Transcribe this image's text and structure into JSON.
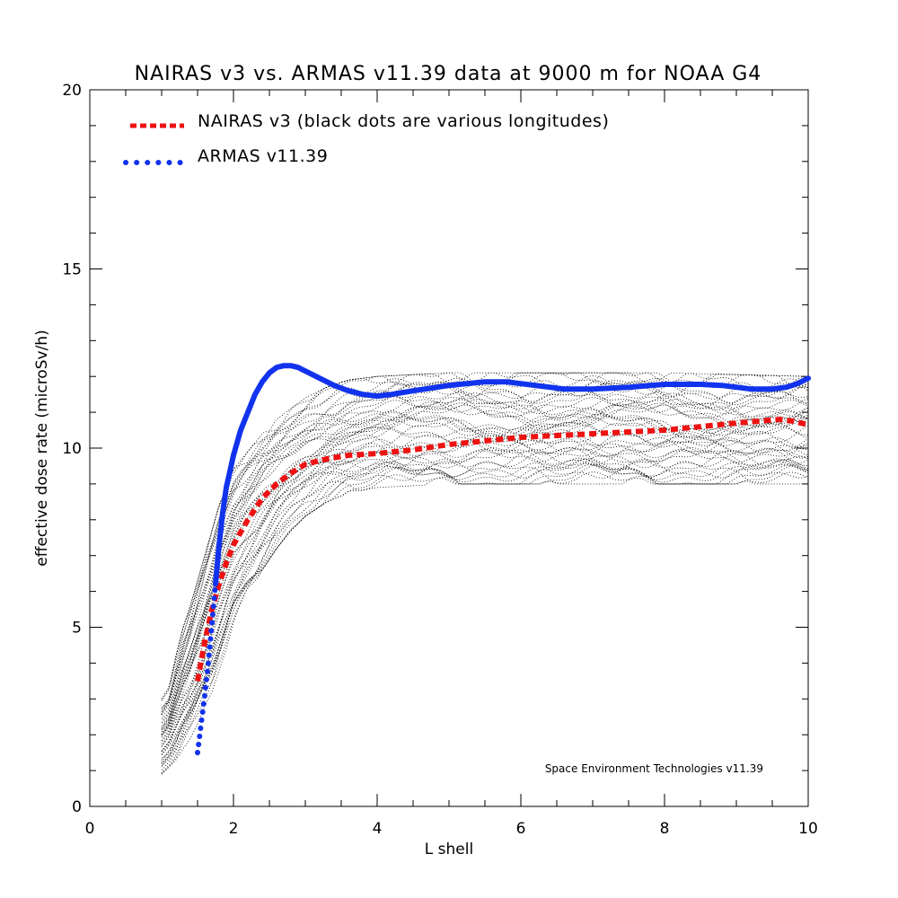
{
  "chart_data": {
    "type": "line",
    "title": "NAIRAS  v3 vs. ARMAS v11.39 data at 9000 m for NOAA G4",
    "xlabel": "L shell",
    "ylabel": "effective dose rate (microSv/h)",
    "xlim": [
      0,
      10
    ],
    "ylim": [
      0,
      20
    ],
    "x_ticks": [
      0,
      2,
      4,
      6,
      8,
      10
    ],
    "y_ticks": [
      0,
      5,
      10,
      15,
      20
    ],
    "grid": false,
    "legend_position": "top-left",
    "annotation": "Space Environment Technologies v11.39",
    "series": [
      {
        "name": "NAIRAS v3 (black dots are various longitudes)",
        "style": "dashed",
        "color": "#ee1111",
        "x": [
          1.5,
          1.6,
          1.7,
          1.8,
          1.9,
          2.0,
          2.2,
          2.4,
          2.6,
          2.8,
          3.0,
          3.3,
          3.6,
          4.0,
          4.5,
          5.0,
          5.5,
          6.0,
          6.5,
          7.0,
          7.5,
          8.0,
          8.5,
          9.0,
          9.3,
          9.6,
          9.8,
          10.0
        ],
        "y": [
          3.5,
          4.6,
          5.5,
          6.2,
          6.8,
          7.3,
          8.0,
          8.6,
          9.0,
          9.3,
          9.55,
          9.7,
          9.8,
          9.85,
          9.95,
          10.1,
          10.2,
          10.3,
          10.35,
          10.4,
          10.45,
          10.5,
          10.6,
          10.7,
          10.75,
          10.8,
          10.75,
          10.65
        ]
      },
      {
        "name": "ARMAS v11.39",
        "style": "dotted-to-solid",
        "color": "#1133ee",
        "x": [
          1.5,
          1.55,
          1.6,
          1.65,
          1.7,
          1.75,
          1.8,
          1.85,
          1.9,
          2.0,
          2.1,
          2.2,
          2.3,
          2.4,
          2.5,
          2.6,
          2.7,
          2.8,
          2.9,
          3.0,
          3.2,
          3.4,
          3.6,
          3.8,
          4.0,
          4.2,
          4.5,
          5.0,
          5.5,
          5.8,
          6.2,
          6.6,
          7.0,
          7.5,
          8.0,
          8.5,
          8.8,
          9.2,
          9.5,
          9.7,
          9.85,
          10.0
        ],
        "y": [
          1.5,
          2.3,
          3.1,
          4.0,
          5.1,
          6.2,
          7.3,
          8.2,
          8.9,
          9.8,
          10.5,
          11.0,
          11.5,
          11.85,
          12.1,
          12.25,
          12.3,
          12.3,
          12.25,
          12.15,
          11.95,
          11.75,
          11.6,
          11.5,
          11.45,
          11.5,
          11.6,
          11.75,
          11.85,
          11.85,
          11.75,
          11.65,
          11.65,
          11.7,
          11.78,
          11.78,
          11.75,
          11.65,
          11.65,
          11.7,
          11.8,
          11.95
        ]
      }
    ],
    "scatter_band": {
      "name": "black dots are various longitudes",
      "color": "#000000",
      "x": [
        1.0,
        1.1,
        1.2,
        1.3,
        1.4,
        1.5,
        1.6,
        1.7,
        1.8,
        1.9,
        2.0,
        2.2,
        2.4,
        2.6,
        2.8,
        3.0,
        3.3,
        3.6,
        4.0,
        4.5,
        5.0,
        5.5,
        6.0,
        7.0,
        8.0,
        9.0,
        10.0
      ],
      "y_low": [
        0.9,
        1.1,
        1.3,
        1.6,
        1.9,
        2.3,
        2.8,
        3.2,
        3.8,
        4.4,
        5.0,
        5.9,
        6.6,
        7.2,
        7.7,
        8.1,
        8.5,
        8.75,
        8.9,
        8.95,
        9.0,
        9.0,
        9.0,
        9.0,
        9.0,
        9.0,
        9.0
      ],
      "y_high": [
        3.0,
        3.3,
        4.2,
        5.0,
        5.6,
        6.3,
        7.0,
        7.7,
        8.4,
        8.9,
        9.4,
        9.9,
        10.4,
        10.8,
        11.1,
        11.4,
        11.7,
        11.9,
        12.0,
        12.05,
        12.1,
        12.1,
        12.1,
        12.1,
        12.1,
        12.05,
        12.0
      ]
    }
  }
}
